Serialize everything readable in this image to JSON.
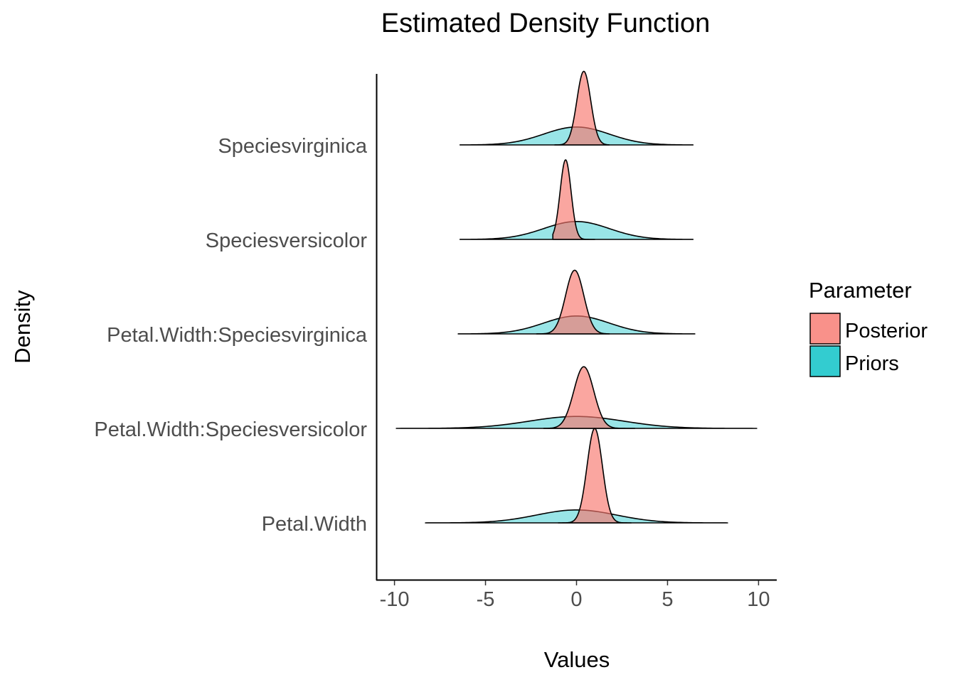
{
  "chart_data": {
    "type": "area",
    "subtype": "ridgeline-density",
    "title": "Estimated Density Function",
    "xlabel": "Values",
    "ylabel": "Density",
    "xlim": [
      -11,
      11
    ],
    "x_ticks": [
      -10,
      -5,
      0,
      5,
      10
    ],
    "x_tick_labels": [
      "-10",
      "-5",
      "0",
      "5",
      "10"
    ],
    "categories": [
      "Petal.Width",
      "Petal.Width:Speciesversicolor",
      "Petal.Width:Speciesvirginica",
      "Speciesversicolor",
      "Speciesvirginica"
    ],
    "grid": false,
    "legend": {
      "title": "Parameter",
      "position": "right",
      "entries": [
        {
          "name": "Posterior",
          "color": "#F8766D"
        },
        {
          "name": "Priors",
          "color": "#00BFC4"
        }
      ]
    },
    "series": [
      {
        "name": "Posterior",
        "color": "#F8766D",
        "distributions": [
          {
            "category": "Petal.Width",
            "range": [
              -1.0,
              3.0
            ],
            "peak": 1.0,
            "sd": 0.42,
            "rel_height": 0.95
          },
          {
            "category": "Petal.Width:Speciesversicolor",
            "range": [
              -1.8,
              3.2
            ],
            "peak": 0.4,
            "sd": 0.55,
            "rel_height": 0.62
          },
          {
            "category": "Petal.Width:Speciesvirginica",
            "range": [
              -2.2,
              1.8
            ],
            "peak": -0.1,
            "sd": 0.5,
            "rel_height": 0.64
          },
          {
            "category": "Speciesversicolor",
            "range": [
              -1.3,
              1.0
            ],
            "peak": -0.6,
            "sd": 0.3,
            "rel_height": 0.8
          },
          {
            "category": "Speciesvirginica",
            "range": [
              -1.2,
              1.8
            ],
            "peak": 0.4,
            "sd": 0.38,
            "rel_height": 0.74
          }
        ]
      },
      {
        "name": "Priors",
        "color": "#00BFC4",
        "distributions": [
          {
            "category": "Petal.Width",
            "range": [
              -8.3,
              8.3
            ],
            "peak": 0.0,
            "sd": 2.2,
            "rel_height": 0.13
          },
          {
            "category": "Petal.Width:Speciesversicolor",
            "range": [
              -9.9,
              9.9
            ],
            "peak": 0.0,
            "sd": 2.6,
            "rel_height": 0.12
          },
          {
            "category": "Petal.Width:Speciesvirginica",
            "range": [
              -6.5,
              6.5
            ],
            "peak": 0.0,
            "sd": 1.8,
            "rel_height": 0.18
          },
          {
            "category": "Speciesversicolor",
            "range": [
              -6.4,
              6.4
            ],
            "peak": 0.0,
            "sd": 1.8,
            "rel_height": 0.18
          },
          {
            "category": "Speciesvirginica",
            "range": [
              -6.4,
              6.4
            ],
            "peak": 0.0,
            "sd": 1.8,
            "rel_height": 0.18
          }
        ]
      }
    ]
  }
}
